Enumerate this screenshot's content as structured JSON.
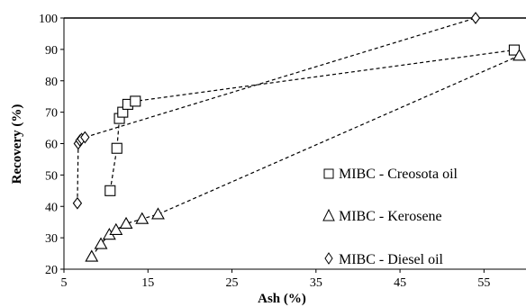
{
  "chart_data": {
    "type": "scatter",
    "title": "",
    "xlabel": "Ash (%)",
    "ylabel": "Recovery (%)",
    "xlim": [
      5,
      60
    ],
    "ylim": [
      20,
      100
    ],
    "x_ticks": [
      "5",
      "15",
      "25",
      "35",
      "45",
      "55"
    ],
    "y_ticks": [
      "20",
      "30",
      "40",
      "50",
      "60",
      "70",
      "80",
      "90",
      "100"
    ],
    "grid": false,
    "legend_position": "right",
    "line_style": "dashed",
    "series": [
      {
        "name": "MIBC - Creosota oil",
        "marker": "square",
        "points": [
          {
            "x": 10.5,
            "y": 45.0
          },
          {
            "x": 11.3,
            "y": 58.5
          },
          {
            "x": 11.6,
            "y": 68.0
          },
          {
            "x": 12.0,
            "y": 70.0
          },
          {
            "x": 12.6,
            "y": 72.5
          },
          {
            "x": 13.5,
            "y": 73.5
          },
          {
            "x": 58.6,
            "y": 89.8
          }
        ]
      },
      {
        "name": "MIBC - Kerosene",
        "marker": "triangle",
        "points": [
          {
            "x": 8.3,
            "y": 24.0
          },
          {
            "x": 9.4,
            "y": 28.0
          },
          {
            "x": 10.4,
            "y": 31.0
          },
          {
            "x": 11.2,
            "y": 32.5
          },
          {
            "x": 12.4,
            "y": 34.5
          },
          {
            "x": 14.3,
            "y": 36.0
          },
          {
            "x": 16.2,
            "y": 37.5
          },
          {
            "x": 59.2,
            "y": 88.0
          }
        ]
      },
      {
        "name": "MIBC - Diesel oil",
        "marker": "diamond",
        "points": [
          {
            "x": 6.6,
            "y": 41.0
          },
          {
            "x": 6.7,
            "y": 60.0
          },
          {
            "x": 6.9,
            "y": 61.0
          },
          {
            "x": 7.1,
            "y": 61.5
          },
          {
            "x": 7.5,
            "y": 62.0
          },
          {
            "x": 54.0,
            "y": 100.0
          }
        ]
      }
    ]
  }
}
